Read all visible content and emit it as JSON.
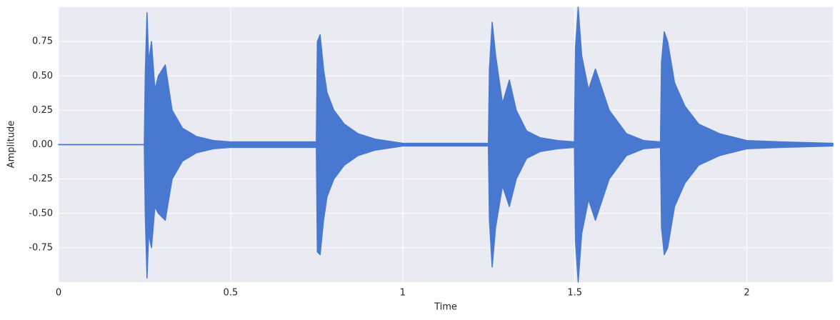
{
  "chart_data": {
    "type": "area",
    "x_label": "Time",
    "y_label": "Amplitude",
    "x": [
      0,
      0.249,
      0.252,
      0.257,
      0.262,
      0.27,
      0.28,
      0.29,
      0.31,
      0.33,
      0.36,
      0.4,
      0.45,
      0.5,
      0.6,
      0.7,
      0.749,
      0.752,
      0.76,
      0.77,
      0.78,
      0.8,
      0.83,
      0.87,
      0.92,
      1.0,
      1.1,
      1.2,
      1.249,
      1.252,
      1.26,
      1.27,
      1.29,
      1.31,
      1.33,
      1.36,
      1.4,
      1.45,
      1.499,
      1.502,
      1.51,
      1.52,
      1.54,
      1.56,
      1.6,
      1.65,
      1.7,
      1.749,
      1.752,
      1.76,
      1.77,
      1.79,
      1.82,
      1.86,
      1.92,
      2.0,
      2.1,
      2.25
    ],
    "series": [
      {
        "color": "#4878d0",
        "values": [
          0,
          0,
          0.52,
          0.96,
          0.6,
          0.75,
          0.4,
          0.5,
          0.58,
          0.25,
          0.12,
          0.06,
          0.03,
          0.02,
          0.02,
          0.02,
          0.02,
          0.75,
          0.8,
          0.55,
          0.38,
          0.25,
          0.15,
          0.08,
          0.04,
          0.01,
          0.01,
          0.01,
          0.01,
          0.55,
          0.89,
          0.65,
          0.3,
          0.47,
          0.25,
          0.1,
          0.05,
          0.03,
          0.02,
          0.7,
          1.0,
          0.65,
          0.4,
          0.55,
          0.25,
          0.08,
          0.03,
          0.02,
          0.6,
          0.82,
          0.75,
          0.45,
          0.28,
          0.15,
          0.08,
          0.03,
          0.02,
          0.01
        ]
      },
      {
        "color": "#4878d0",
        "values": [
          0,
          0,
          -0.52,
          -0.97,
          -0.65,
          -0.75,
          -0.45,
          -0.5,
          -0.55,
          -0.25,
          -0.12,
          -0.06,
          -0.03,
          -0.02,
          -0.02,
          -0.02,
          -0.02,
          -0.78,
          -0.8,
          -0.55,
          -0.38,
          -0.25,
          -0.15,
          -0.08,
          -0.04,
          -0.01,
          -0.01,
          -0.01,
          -0.01,
          -0.55,
          -0.89,
          -0.6,
          -0.3,
          -0.45,
          -0.25,
          -0.1,
          -0.05,
          -0.03,
          -0.02,
          -0.7,
          -1.0,
          -0.65,
          -0.4,
          -0.55,
          -0.25,
          -0.08,
          -0.03,
          -0.02,
          -0.6,
          -0.8,
          -0.75,
          -0.45,
          -0.28,
          -0.15,
          -0.08,
          -0.03,
          -0.02,
          -0.01
        ]
      }
    ],
    "xlim": [
      0,
      2.25
    ],
    "ylim": [
      -1,
      1
    ],
    "xticks": [
      0,
      0.5,
      1,
      1.5,
      2
    ],
    "yticks": [
      -0.75,
      {
        "value": -0.5,
        "label": "-0.50"
      },
      -0.25,
      {
        "value": 0,
        "label": "0.00"
      },
      0.25,
      {
        "value": 0.5,
        "label": "0.50"
      },
      0.75
    ],
    "grid": true
  }
}
